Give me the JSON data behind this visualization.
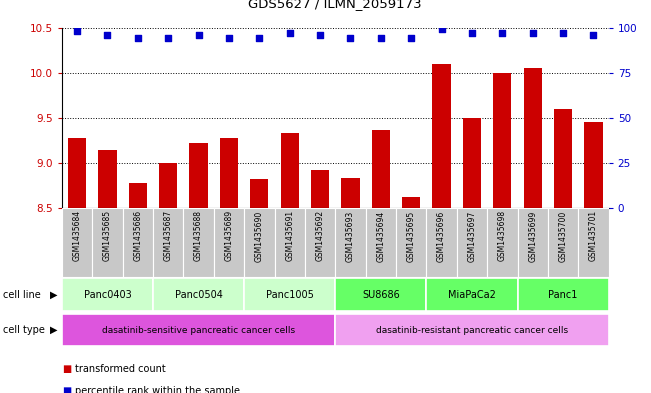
{
  "title": "GDS5627 / ILMN_2059173",
  "samples": [
    "GSM1435684",
    "GSM1435685",
    "GSM1435686",
    "GSM1435687",
    "GSM1435688",
    "GSM1435689",
    "GSM1435690",
    "GSM1435691",
    "GSM1435692",
    "GSM1435693",
    "GSM1435694",
    "GSM1435695",
    "GSM1435696",
    "GSM1435697",
    "GSM1435698",
    "GSM1435699",
    "GSM1435700",
    "GSM1435701"
  ],
  "bar_values": [
    9.28,
    9.15,
    8.78,
    9.0,
    9.22,
    9.28,
    8.82,
    9.33,
    8.92,
    8.83,
    9.37,
    8.63,
    10.1,
    9.5,
    10.0,
    10.05,
    9.6,
    9.45
  ],
  "dot_values": [
    98,
    96,
    94,
    94,
    96,
    94,
    94,
    97,
    96,
    94,
    94,
    94,
    99,
    97,
    97,
    97,
    97,
    96
  ],
  "ylim": [
    8.5,
    10.5
  ],
  "y2lim": [
    0,
    100
  ],
  "yticks": [
    8.5,
    9.0,
    9.5,
    10.0,
    10.5
  ],
  "y2ticks": [
    0,
    25,
    50,
    75,
    100
  ],
  "bar_color": "#cc0000",
  "dot_color": "#0000cc",
  "cell_lines": [
    {
      "label": "Panc0403",
      "start": 0,
      "end": 3,
      "color": "#ccffcc"
    },
    {
      "label": "Panc0504",
      "start": 3,
      "end": 6,
      "color": "#ccffcc"
    },
    {
      "label": "Panc1005",
      "start": 6,
      "end": 9,
      "color": "#ccffcc"
    },
    {
      "label": "SU8686",
      "start": 9,
      "end": 12,
      "color": "#66ff66"
    },
    {
      "label": "MiaPaCa2",
      "start": 12,
      "end": 15,
      "color": "#66ff66"
    },
    {
      "label": "Panc1",
      "start": 15,
      "end": 18,
      "color": "#66ff66"
    }
  ],
  "cell_types": [
    {
      "label": "dasatinib-sensitive pancreatic cancer cells",
      "start": 0,
      "end": 9,
      "color": "#dd55dd"
    },
    {
      "label": "dasatinib-resistant pancreatic cancer cells",
      "start": 9,
      "end": 18,
      "color": "#f0a0f0"
    }
  ],
  "xlabel_color": "#cc0000",
  "y2label_color": "#0000cc",
  "tick_label_bg": "#c8c8c8",
  "legend_items": [
    {
      "color": "#cc0000",
      "label": "transformed count"
    },
    {
      "color": "#0000cc",
      "label": "percentile rank within the sample"
    }
  ]
}
